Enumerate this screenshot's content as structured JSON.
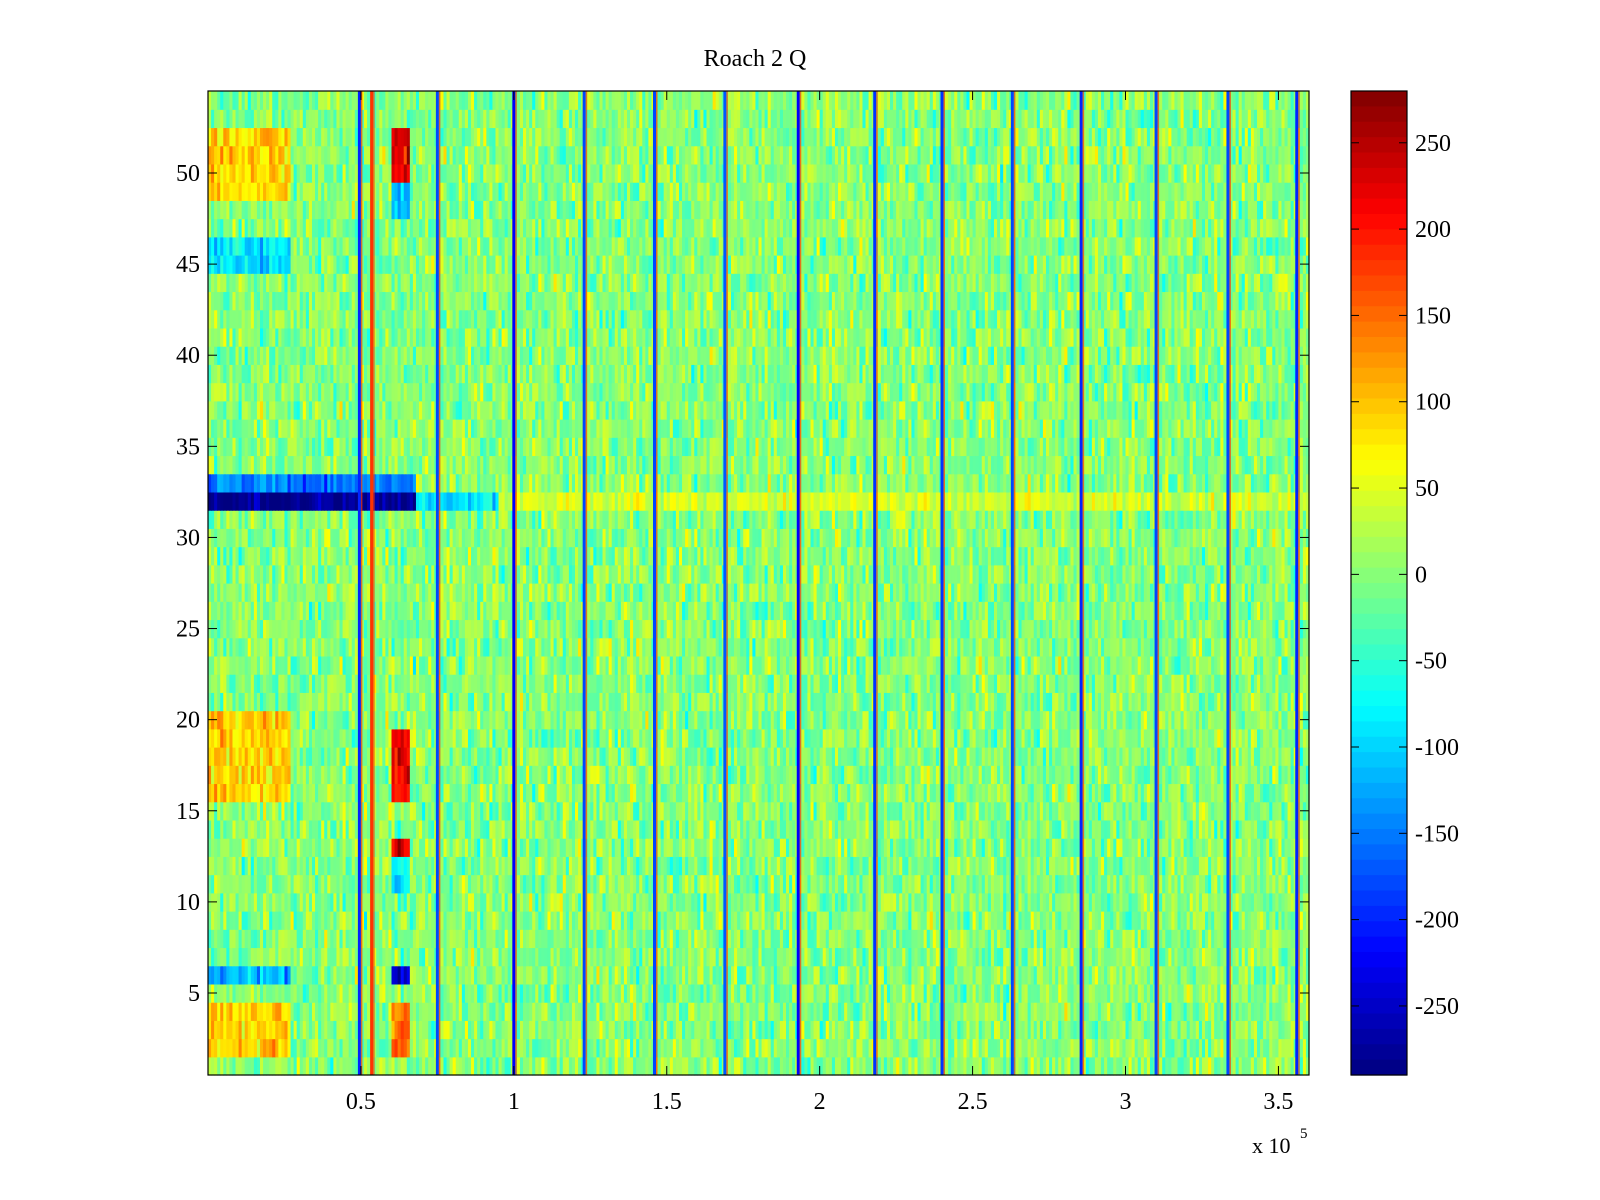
{
  "chart_data": {
    "type": "heatmap",
    "title": "Roach 2 Q",
    "xlabel": "",
    "ylabel": "",
    "x_exponent_label": "x 10",
    "x_exponent_power": "5",
    "xlim": [
      0,
      3.6
    ],
    "ylim": [
      0.5,
      54.5
    ],
    "x_ticks": [
      0.5,
      1,
      1.5,
      2,
      2.5,
      3,
      3.5
    ],
    "x_tick_labels": [
      "0.5",
      "1",
      "1.5",
      "2",
      "2.5",
      "3",
      "3.5"
    ],
    "y_ticks": [
      5,
      10,
      15,
      20,
      25,
      30,
      35,
      40,
      45,
      50
    ],
    "y_tick_labels": [
      "5",
      "10",
      "15",
      "20",
      "25",
      "30",
      "35",
      "40",
      "45",
      "50"
    ],
    "rows": 54,
    "colormap": "jet",
    "colorbar": {
      "clim": [
        -290,
        280
      ],
      "ticks": [
        250,
        200,
        150,
        100,
        50,
        0,
        -50,
        -100,
        -150,
        -200,
        -250
      ],
      "tick_labels": [
        "250",
        "200",
        "150",
        "100",
        "50",
        "0",
        "-50",
        "-100",
        "-150",
        "-200",
        "-250"
      ]
    },
    "background_noise": {
      "mean": 0,
      "std": 30
    },
    "vertical_stripes": [
      {
        "x": 0.495,
        "value": -200
      },
      {
        "x": 0.535,
        "value": 180
      },
      {
        "x": 0.75,
        "value": -180
      },
      {
        "x": 1.0,
        "value": -220
      },
      {
        "x": 1.23,
        "value": -180
      },
      {
        "x": 1.46,
        "value": -180
      },
      {
        "x": 1.69,
        "value": -170
      },
      {
        "x": 1.93,
        "value": -220
      },
      {
        "x": 2.18,
        "value": -190
      },
      {
        "x": 2.4,
        "value": -190
      },
      {
        "x": 2.63,
        "value": -180
      },
      {
        "x": 2.855,
        "value": -200
      },
      {
        "x": 3.1,
        "value": -180
      },
      {
        "x": 3.335,
        "value": -180
      },
      {
        "x": 3.56,
        "value": -200
      }
    ],
    "regions": [
      {
        "x": [
          0.6,
          0.66
        ],
        "rows": [
          50,
          52
        ],
        "value": 220
      },
      {
        "x": [
          0.6,
          0.66
        ],
        "rows": [
          16,
          19
        ],
        "value": 220
      },
      {
        "x": [
          0.6,
          0.66
        ],
        "rows": [
          13,
          13
        ],
        "value": 230
      },
      {
        "x": [
          0.6,
          0.66
        ],
        "rows": [
          2,
          4
        ],
        "value": 150
      },
      {
        "x": [
          0.6,
          0.66
        ],
        "rows": [
          6,
          6
        ],
        "value": -240
      },
      {
        "x": [
          0.6,
          0.66
        ],
        "rows": [
          48,
          49
        ],
        "value": -110
      },
      {
        "x": [
          0.6,
          0.66
        ],
        "rows": [
          11,
          12
        ],
        "value": -90
      },
      {
        "x": [
          0.0,
          0.27
        ],
        "rows": [
          49,
          52
        ],
        "value": 90
      },
      {
        "x": [
          0.0,
          0.27
        ],
        "rows": [
          16,
          20
        ],
        "value": 90
      },
      {
        "x": [
          0.0,
          0.27
        ],
        "rows": [
          2,
          4
        ],
        "value": 90
      },
      {
        "x": [
          0.0,
          0.27
        ],
        "rows": [
          6,
          6
        ],
        "value": -120
      },
      {
        "x": [
          0.0,
          0.27
        ],
        "rows": [
          45,
          46
        ],
        "value": -90
      },
      {
        "x": [
          0.0,
          0.68
        ],
        "rows": [
          33,
          33
        ],
        "value": -150
      },
      {
        "x": [
          0.0,
          0.68
        ],
        "rows": [
          32,
          32
        ],
        "value": -280
      }
    ],
    "row_32_trend": [
      {
        "x": [
          0.68,
          0.95
        ],
        "value": -90
      },
      {
        "x": [
          0.95,
          3.6
        ],
        "value": 45
      }
    ]
  }
}
